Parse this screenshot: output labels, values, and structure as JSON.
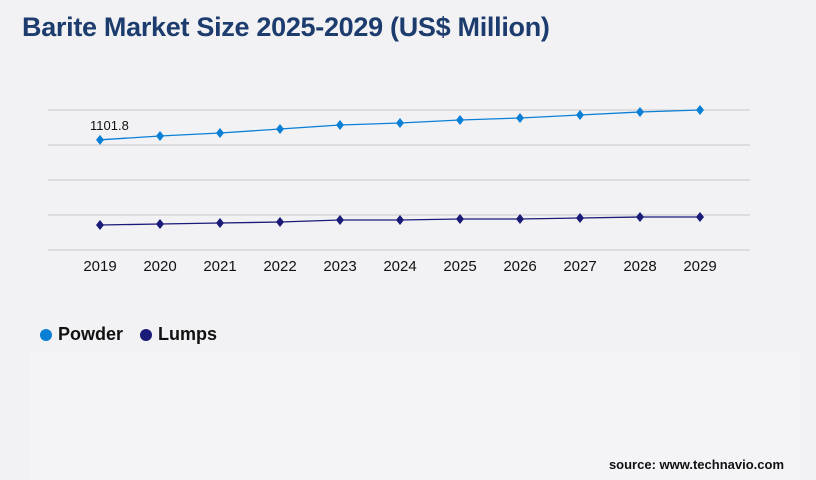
{
  "title": "Barite Market Size 2025-2029 (US$ Million)",
  "source": "source: www.technavio.com",
  "colors": {
    "powder": "#0a7fd6",
    "lumps": "#1a1a78",
    "title": "#1d3c6e",
    "grid": "#c8c8cc"
  },
  "chart_data": {
    "type": "line",
    "categories": [
      "2019",
      "2020",
      "2021",
      "2022",
      "2023",
      "2024",
      "2025",
      "2026",
      "2027",
      "2028",
      "2029"
    ],
    "ylim": [
      0,
      1400
    ],
    "grid": true,
    "legend_position": "bottom-left",
    "series": [
      {
        "name": "Powder",
        "values": [
          1101.8,
          1140,
          1170,
          1210,
          1250,
          1270,
          1300,
          1320,
          1350,
          1380,
          1400
        ]
      },
      {
        "name": "Lumps",
        "values": [
          250,
          260,
          270,
          280,
          300,
          300,
          310,
          310,
          320,
          330,
          330
        ]
      }
    ],
    "data_labels": [
      {
        "series": "Powder",
        "category": "2019",
        "text": "1101.8"
      }
    ]
  }
}
